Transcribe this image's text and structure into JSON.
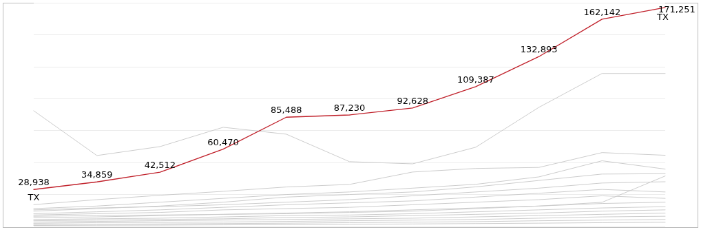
{
  "chart_data": {
    "type": "line",
    "categories": [
      null,
      null,
      null,
      null,
      null,
      null,
      null,
      null,
      null,
      null,
      null
    ],
    "ylim": [
      0,
      175000
    ],
    "yticks": [
      {
        "value": 0,
        "label": null
      },
      {
        "value": 25000,
        "label": null
      },
      {
        "value": 50000,
        "label": null
      },
      {
        "value": 75000,
        "label": null
      },
      {
        "value": 100000,
        "label": null
      },
      {
        "value": 125000,
        "label": null
      },
      {
        "value": 150000,
        "label": null
      },
      {
        "value": 175000,
        "label": null
      }
    ],
    "grid": "y",
    "marker": "none",
    "line_style": "solid",
    "series": [
      {
        "name": "TX",
        "color": "#c0202a",
        "values": [
          28938,
          34859,
          42512,
          60470,
          85488,
          87230,
          92628,
          109387,
          132893,
          162142,
          171251
        ],
        "value_labels": [
          "28,938",
          "34,859",
          "42,512",
          "60,470",
          "85,488",
          "87,230",
          "92,628",
          "109,387",
          "132,893",
          "162,142",
          "171,251"
        ]
      },
      {
        "color": "#cccccc",
        "values": [
          90500,
          55500,
          62500,
          77600,
          72200,
          50700,
          49000,
          62000,
          93200,
          119700,
          119700
        ]
      },
      {
        "color": "#cccccc",
        "values": [
          17100,
          21000,
          24400,
          27500,
          30900,
          32900,
          42600,
          45400,
          46200,
          57800,
          55700
        ]
      },
      {
        "color": "#cccccc",
        "values": [
          14000,
          16000,
          19000,
          22000,
          25000,
          27000,
          30000,
          33000,
          38800,
          51400,
          44900
        ]
      },
      {
        "color": "#cccccc",
        "values": [
          12000,
          14000,
          16000,
          19000,
          23000,
          25000,
          27000,
          31000,
          36000,
          41000,
          41300
        ]
      },
      {
        "color": "#cccccc",
        "values": [
          13000,
          14500,
          15500,
          17000,
          19000,
          21000,
          24000,
          27000,
          30000,
          34000,
          35000
        ]
      },
      {
        "color": "#cccccc",
        "values": [
          10000,
          11500,
          13000,
          15000,
          17000,
          18500,
          20000,
          23000,
          26000,
          29000,
          27000
        ]
      },
      {
        "color": "#cccccc",
        "values": [
          8000,
          8500,
          9000,
          9500,
          10000,
          11000,
          12000,
          14000,
          16000,
          18900,
          39500
        ]
      },
      {
        "color": "#cccccc",
        "values": [
          9000,
          10000,
          11000,
          13000,
          14000,
          15000,
          17000,
          19000,
          21000,
          24000,
          22000
        ]
      },
      {
        "color": "#cccccc",
        "values": [
          7000,
          7500,
          8500,
          9500,
          10500,
          11500,
          13000,
          14500,
          16000,
          18000,
          19000
        ]
      },
      {
        "color": "#cccccc",
        "values": [
          5500,
          6000,
          6500,
          7500,
          8500,
          9000,
          10000,
          11500,
          13000,
          14500,
          15500
        ]
      },
      {
        "color": "#cccccc",
        "values": [
          4500,
          5000,
          5500,
          6000,
          7000,
          7500,
          8500,
          9500,
          10500,
          12000,
          13000
        ]
      },
      {
        "color": "#cccccc",
        "values": [
          3500,
          4000,
          4500,
          5000,
          5500,
          6000,
          6500,
          7500,
          8500,
          9500,
          10500
        ]
      },
      {
        "color": "#cccccc",
        "values": [
          2500,
          3000,
          3200,
          3500,
          4000,
          4500,
          5000,
          5500,
          6500,
          7500,
          8000
        ]
      },
      {
        "color": "#cccccc",
        "values": [
          1500,
          1800,
          2000,
          2300,
          2600,
          3000,
          3400,
          3800,
          4500,
          5000,
          5500
        ]
      },
      {
        "color": "#cccccc",
        "values": [
          800,
          1000,
          1100,
          1300,
          1500,
          1700,
          2000,
          2300,
          2600,
          3000,
          3300
        ]
      }
    ]
  }
}
